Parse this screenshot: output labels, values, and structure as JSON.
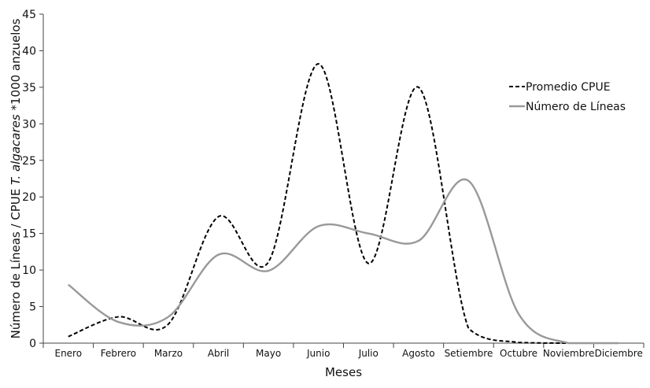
{
  "chart_data": {
    "type": "line",
    "xlabel": "Meses",
    "ylabel_parts": [
      "Número de Líneas / CPUE ",
      "T. algacares",
      " *1000 anzuelos"
    ],
    "categories": [
      "Enero",
      "Febrero",
      "Marzo",
      "Abril",
      "Mayo",
      "Junio",
      "Julio",
      "Agosto",
      "Setiembre",
      "Octubre",
      "Noviembre",
      "Diciembre"
    ],
    "ylim": [
      0,
      45
    ],
    "yticks": [
      0,
      5,
      10,
      15,
      20,
      25,
      30,
      35,
      40,
      45
    ],
    "grid": false,
    "legend_position": "right",
    "series": [
      {
        "name": "Promedio CPUE",
        "style": "dashed",
        "color": "#000000",
        "values": [
          0.9,
          3.6,
          2.6,
          17.3,
          11.1,
          38.2,
          10.9,
          35.0,
          2.0,
          0.1,
          0.0,
          0.0
        ]
      },
      {
        "name": "Número de Líneas",
        "style": "solid",
        "color": "#999999",
        "values": [
          8.0,
          2.9,
          3.6,
          12.1,
          9.9,
          16.0,
          15.0,
          14.0,
          22.2,
          4.0,
          0.0,
          0.0
        ]
      }
    ]
  }
}
